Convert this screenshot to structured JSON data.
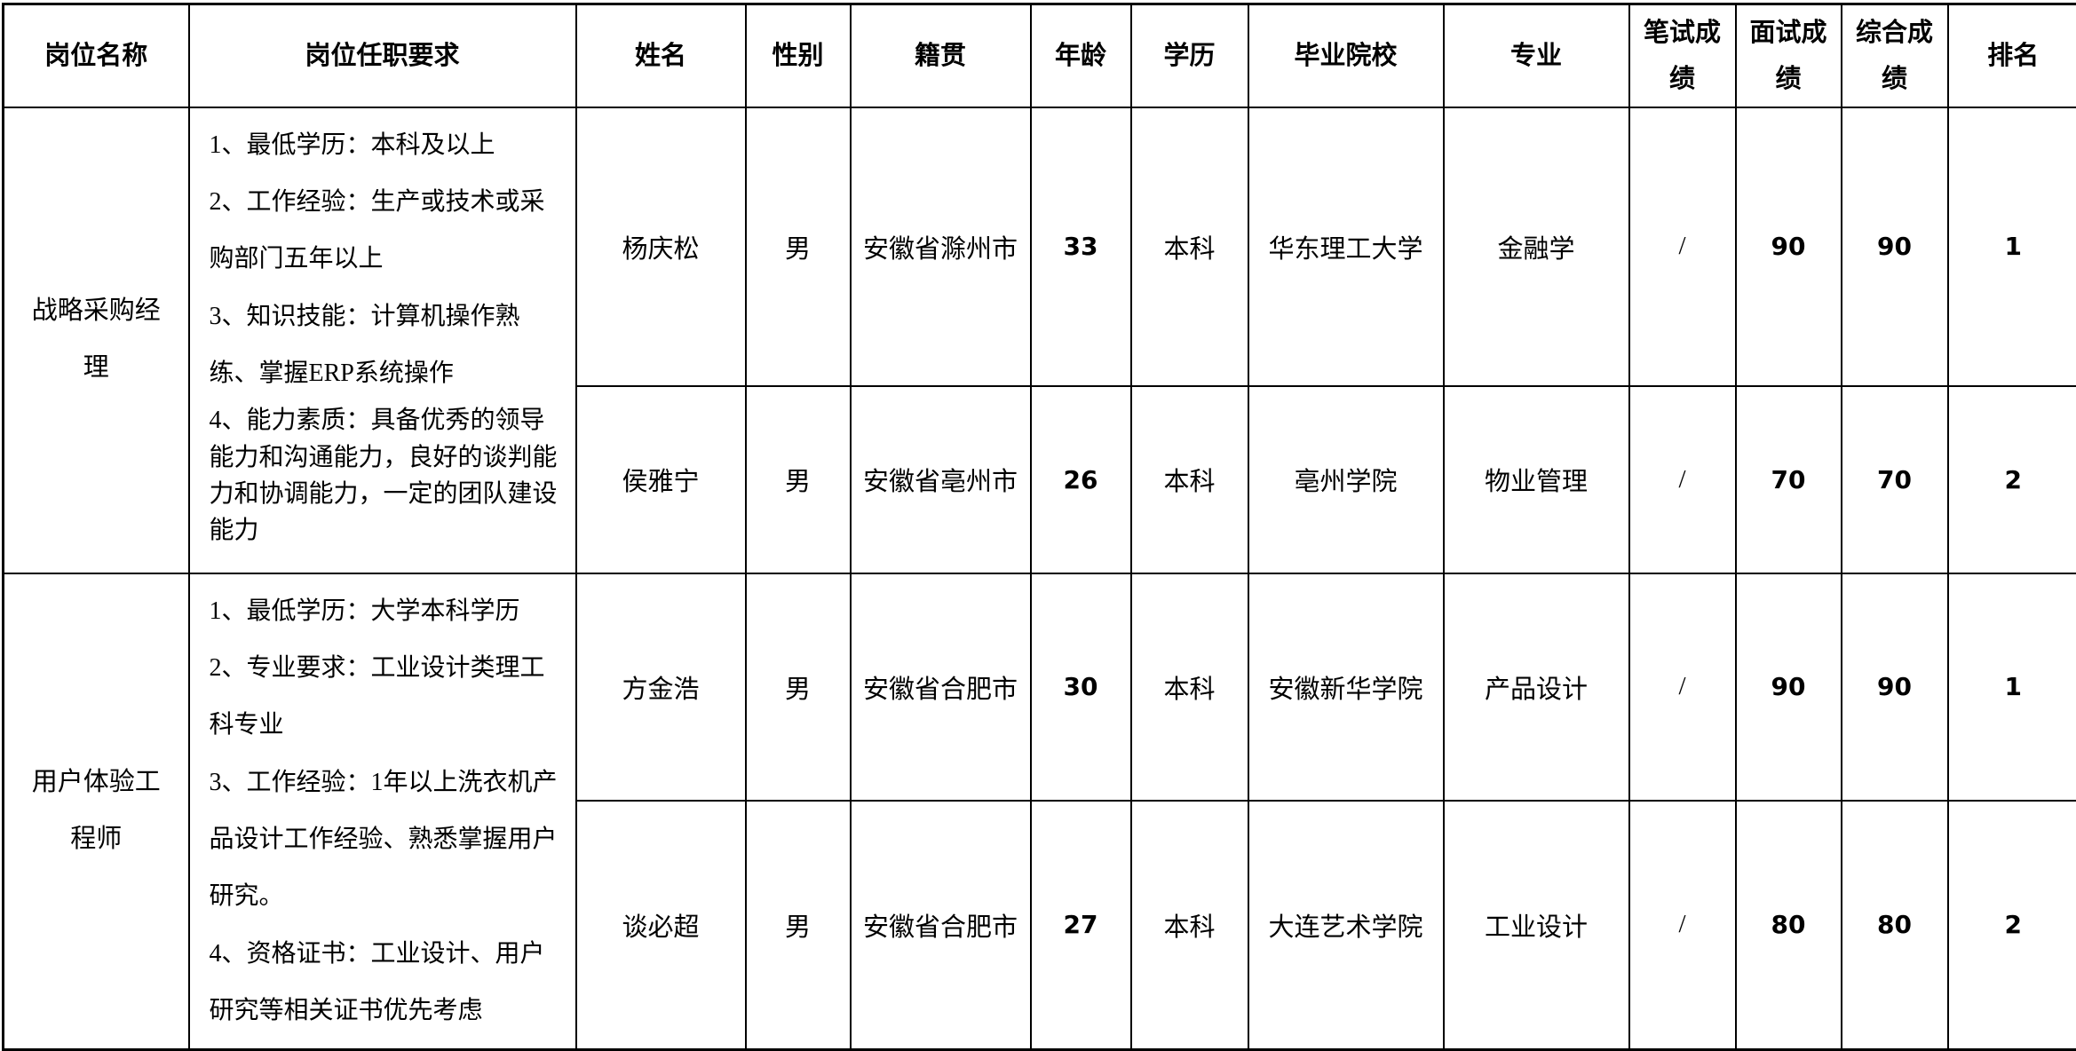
{
  "colors": {
    "background": "#ffffff",
    "border": "#000000",
    "text": "#000000"
  },
  "table": {
    "columns": [
      {
        "label": "岗位名称"
      },
      {
        "label": "岗位任职要求"
      },
      {
        "label": "姓名"
      },
      {
        "label": "性别"
      },
      {
        "label": "籍贯"
      },
      {
        "label": "年龄"
      },
      {
        "label": "学历"
      },
      {
        "label": "毕业院校"
      },
      {
        "label": "专业"
      },
      {
        "label": "笔试成绩"
      },
      {
        "label": "面试成绩"
      },
      {
        "label": "综合成绩"
      },
      {
        "label": "排名"
      }
    ],
    "positions": [
      {
        "name": "战略采购经理",
        "requirements": [
          "1、最低学历：本科及以上",
          "2、工作经验：生产或技术或采购部门五年以上",
          "3、知识技能：计算机操作熟练、掌握ERP系统操作",
          "4、能力素质：具备优秀的领导能力和沟通能力，良好的谈判能力和协调能力，一定的团队建设能力"
        ],
        "candidates": [
          {
            "name": "杨庆松",
            "gender": "男",
            "native_place": "安徽省滁州市",
            "age": "33",
            "education": "本科",
            "school": "华东理工大学",
            "major": "金融学",
            "written_score": "/",
            "interview_score": "90",
            "overall_score": "90",
            "rank": "1"
          },
          {
            "name": "侯雅宁",
            "gender": "男",
            "native_place": "安徽省亳州市",
            "age": "26",
            "education": "本科",
            "school": "亳州学院",
            "major": "物业管理",
            "written_score": "/",
            "interview_score": "70",
            "overall_score": "70",
            "rank": "2"
          }
        ]
      },
      {
        "name": "用户体验工程师",
        "requirements": [
          "1、最低学历：大学本科学历",
          "2、专业要求：工业设计类理工科专业",
          "3、工作经验：1年以上洗衣机产品设计工作经验、熟悉掌握用户研究。",
          "4、资格证书：工业设计、用户研究等相关证书优先考虑"
        ],
        "candidates": [
          {
            "name": "方金浩",
            "gender": "男",
            "native_place": "安徽省合肥市",
            "age": "30",
            "education": "本科",
            "school": "安徽新华学院",
            "major": "产品设计",
            "written_score": "/",
            "interview_score": "90",
            "overall_score": "90",
            "rank": "1"
          },
          {
            "name": "谈必超",
            "gender": "男",
            "native_place": "安徽省合肥市",
            "age": "27",
            "education": "本科",
            "school": "大连艺术学院",
            "major": "工业设计",
            "written_score": "/",
            "interview_score": "80",
            "overall_score": "80",
            "rank": "2"
          }
        ]
      }
    ]
  }
}
